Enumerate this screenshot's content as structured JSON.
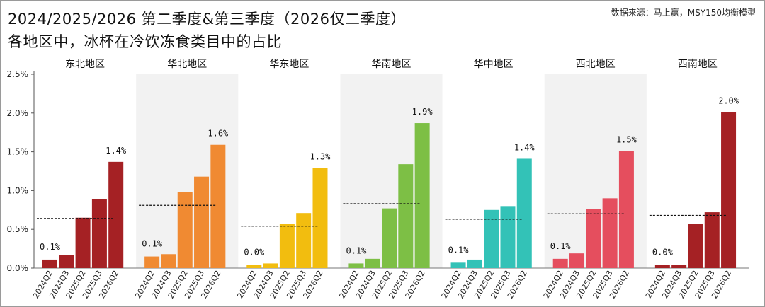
{
  "header": {
    "title_line1": "2024/2025/2026 第二季度&第三季度（2026仅二季度）",
    "title_line2": "各地区中，冰杯在冷饮冻食类目中的占比",
    "source": "数据来源：马上赢，MSY150均衡模型"
  },
  "chart_data": {
    "type": "bar",
    "title": "2024/2025/2026 第二季度&第三季度（2026仅二季度）",
    "subtitle": "各地区中，冰杯在冷饮冻食类目中的占比",
    "categories": [
      "2024Q2",
      "2024Q3",
      "2025Q2",
      "2025Q3",
      "2026Q2"
    ],
    "ylim": [
      0,
      2.5
    ],
    "yticks": [
      0,
      0.5,
      1.0,
      1.5,
      2.0,
      2.5
    ],
    "ytick_labels": [
      "0.0%",
      "0.5%",
      "1.0%",
      "1.5%",
      "2.0%",
      "2.5%"
    ],
    "unit": "%",
    "grid": false,
    "panels": [
      {
        "name": "东北地区",
        "values": [
          0.11,
          0.17,
          0.65,
          0.89,
          1.37
        ],
        "avg": 0.64,
        "first_label": "0.1%",
        "last_label": "1.4%",
        "color": "#a52124",
        "light_color": "#a52124",
        "shaded": false
      },
      {
        "name": "华北地区",
        "values": [
          0.15,
          0.18,
          0.98,
          1.18,
          1.59
        ],
        "avg": 0.81,
        "first_label": "0.1%",
        "last_label": "1.6%",
        "color": "#f08a32",
        "light_color": "#f08a32",
        "shaded": true
      },
      {
        "name": "华东地区",
        "values": [
          0.04,
          0.06,
          0.57,
          0.71,
          1.29
        ],
        "avg": 0.54,
        "first_label": "0.0%",
        "last_label": "1.3%",
        "color": "#f2bd0f",
        "light_color": "#f2bd0f",
        "shaded": false
      },
      {
        "name": "华南地区",
        "values": [
          0.06,
          0.12,
          0.77,
          1.34,
          1.87
        ],
        "avg": 0.83,
        "first_label": "0.1%",
        "last_label": "1.9%",
        "color": "#7dbf45",
        "light_color": "#7dbf45",
        "shaded": true
      },
      {
        "name": "华中地区",
        "values": [
          0.07,
          0.11,
          0.75,
          0.8,
          1.41
        ],
        "avg": 0.63,
        "first_label": "0.1%",
        "last_label": "1.4%",
        "color": "#33c2b7",
        "light_color": "#33c2b7",
        "shaded": false
      },
      {
        "name": "西北地区",
        "values": [
          0.12,
          0.19,
          0.76,
          0.9,
          1.51
        ],
        "avg": 0.7,
        "first_label": "0.1%",
        "last_label": "1.5%",
        "color": "#e54e5e",
        "light_color": "#e54e5e",
        "shaded": true
      },
      {
        "name": "西南地区",
        "values": [
          0.04,
          0.04,
          0.57,
          0.72,
          2.01
        ],
        "avg": 0.68,
        "first_label": "0.0%",
        "last_label": "2.0%",
        "color": "#a52124",
        "light_color": "#a52124",
        "shaded": false
      }
    ],
    "shade_color": "#f2f2f2",
    "avg_line_style": "dashed"
  }
}
